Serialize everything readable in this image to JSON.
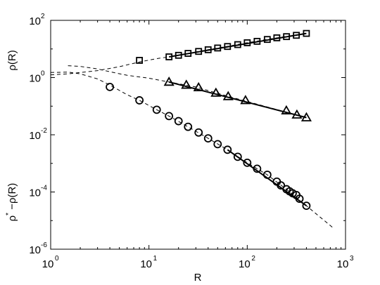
{
  "chart_data": {
    "type": "scatter",
    "title": "",
    "xlabel": "R",
    "ylabel_top": "ρ(R)",
    "ylabel_bottom": {
      "base": "ρ",
      "sup": "*",
      "rest": " −ρ(R)"
    },
    "xscale": "log",
    "yscale": "log",
    "xlim": [
      1,
      1000
    ],
    "ylim": [
      1e-06,
      100
    ],
    "grid": false,
    "legend": "none",
    "x_ticks": [
      {
        "value": 1,
        "base": "10",
        "exp": "0"
      },
      {
        "value": 10,
        "base": "10",
        "exp": "1"
      },
      {
        "value": 100,
        "base": "10",
        "exp": "2"
      },
      {
        "value": 1000,
        "base": "10",
        "exp": "3"
      }
    ],
    "y_ticks": [
      {
        "value": 100,
        "base": "10",
        "exp": "2"
      },
      {
        "value": 1,
        "base": "10",
        "exp": "0"
      },
      {
        "value": 0.01,
        "base": "10",
        "exp": "-2"
      },
      {
        "value": 0.0001,
        "base": "10",
        "exp": "-4"
      },
      {
        "value": 1e-06,
        "base": "10",
        "exp": "-6"
      }
    ],
    "series": [
      {
        "marker": "square",
        "x": [
          8,
          16,
          20,
          25,
          32,
          40,
          50,
          63,
          80,
          100,
          126,
          160,
          200,
          251,
          316,
          400
        ],
        "y": [
          4.0,
          5.3,
          6.0,
          7.0,
          8.2,
          9.4,
          10.8,
          12.2,
          14.2,
          16.5,
          18.5,
          21.5,
          24.5,
          27.0,
          30.0,
          35.0
        ]
      },
      {
        "marker": "triangle",
        "x": [
          16,
          24,
          32,
          48,
          64,
          96,
          250,
          320,
          400
        ],
        "y": [
          0.7,
          0.55,
          0.45,
          0.29,
          0.22,
          0.16,
          0.07,
          0.05,
          0.04
        ]
      },
      {
        "marker": "circle",
        "x": [
          4,
          8,
          12,
          16,
          20,
          25,
          32,
          40,
          50,
          63,
          80,
          100,
          126,
          160,
          200,
          220,
          251,
          270,
          290,
          316,
          340,
          400
        ],
        "y": [
          0.47,
          0.16,
          0.075,
          0.045,
          0.03,
          0.019,
          0.012,
          0.0075,
          0.0047,
          0.003,
          0.0017,
          0.00105,
          0.00065,
          0.0004,
          0.00023,
          0.00017,
          0.000125,
          0.000105,
          9e-05,
          7.8e-05,
          5.8e-05,
          3.3e-05
        ]
      }
    ],
    "fit_lines": [
      {
        "style": "solid",
        "x": [
          16,
          400
        ],
        "y": [
          5.3,
          35.0
        ]
      },
      {
        "style": "solid",
        "x": [
          16,
          400
        ],
        "y": [
          0.7,
          0.04
        ]
      },
      {
        "style": "solid",
        "x": [
          63,
          400
        ],
        "y": [
          0.003,
          3.3e-05
        ]
      }
    ],
    "dashed_curves": [
      {
        "x": [
          1.0,
          1.5,
          2,
          3,
          5,
          8,
          12,
          16,
          25,
          40,
          60,
          100,
          200,
          400
        ],
        "y": [
          1.25,
          1.35,
          1.5,
          1.75,
          2.4,
          3.5,
          4.6,
          5.3,
          7.0,
          9.4,
          12.0,
          16.5,
          24.5,
          35.0
        ]
      },
      {
        "x": [
          1.5,
          2,
          3,
          4,
          6,
          10,
          16,
          30,
          64,
          150,
          400
        ],
        "y": [
          2.6,
          2.45,
          2.0,
          1.6,
          1.2,
          0.95,
          0.7,
          0.47,
          0.22,
          0.1,
          0.04
        ]
      },
      {
        "x": [
          1.0,
          1.5,
          2,
          3,
          4,
          6,
          8,
          12,
          16,
          25,
          40,
          63,
          100,
          160,
          250,
          400,
          750
        ],
        "y": [
          1.5,
          1.55,
          1.35,
          0.9,
          0.55,
          0.25,
          0.16,
          0.075,
          0.045,
          0.019,
          0.0075,
          0.003,
          0.00105,
          0.0004,
          0.000125,
          3.3e-05,
          5.5e-06
        ]
      }
    ]
  }
}
